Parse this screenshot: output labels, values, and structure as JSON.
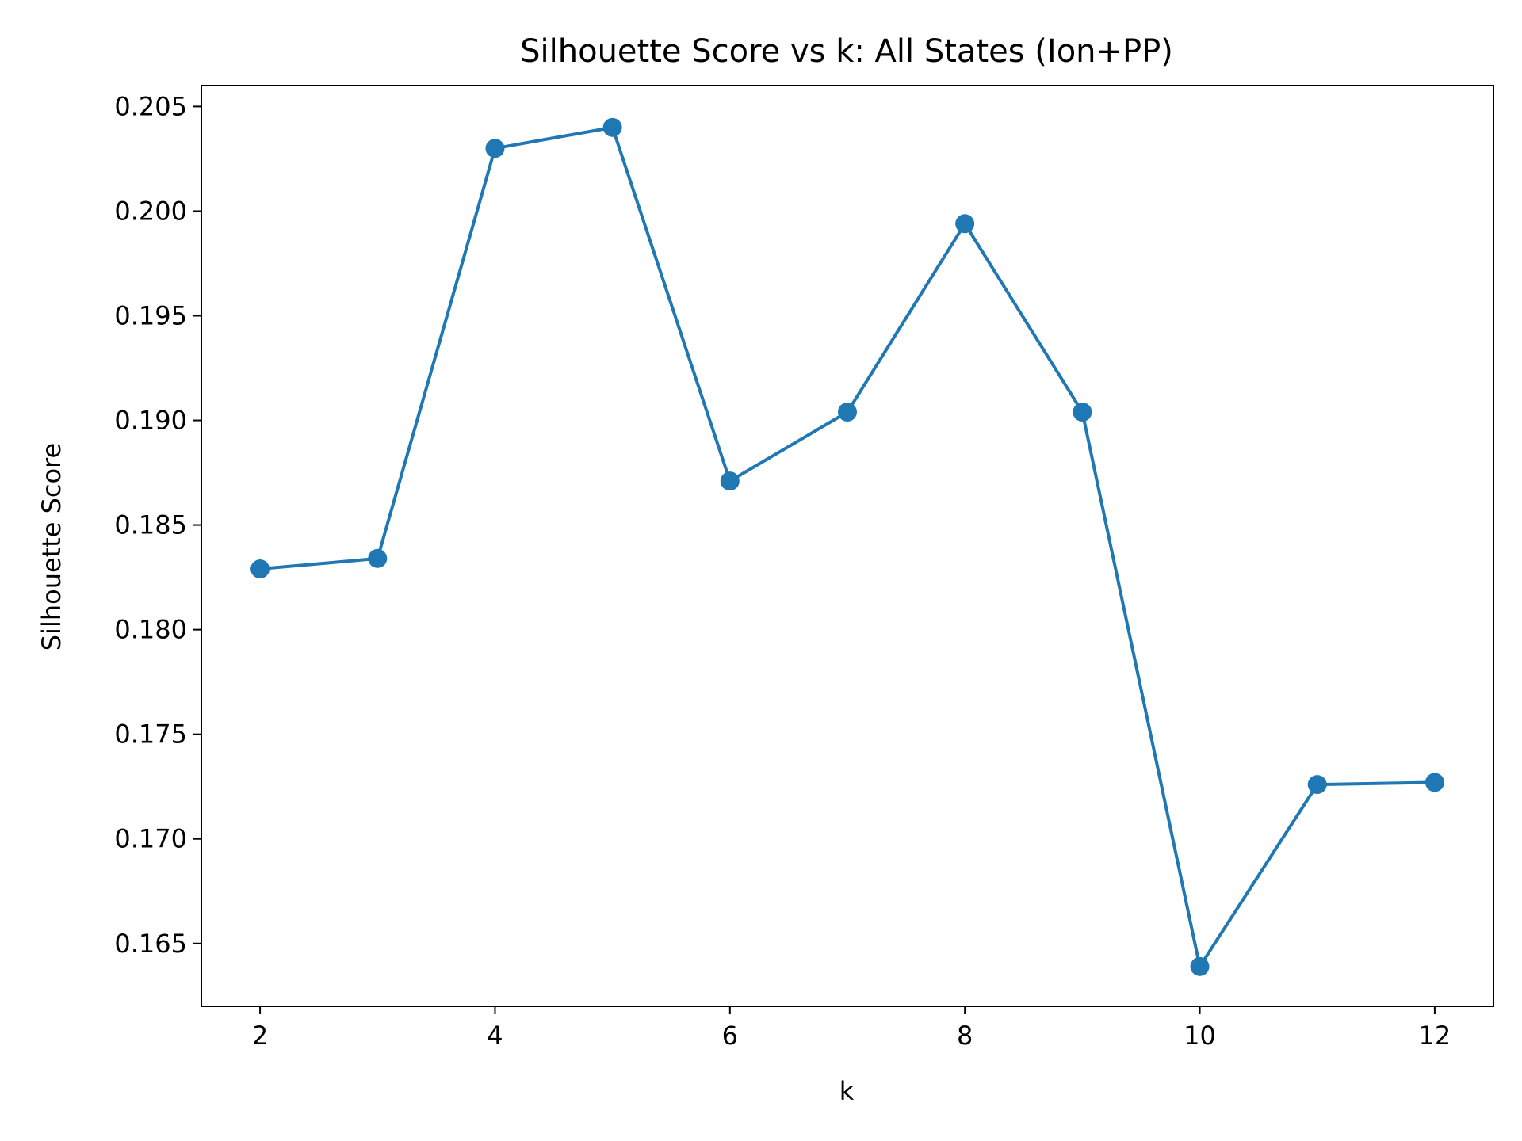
{
  "chart_data": {
    "type": "line",
    "title": "Silhouette Score vs k: All States (Ion+PP)",
    "xlabel": "k",
    "ylabel": "Silhouette Score",
    "xlim": [
      1.5,
      12.5
    ],
    "ylim": [
      0.162,
      0.206
    ],
    "xticks": [
      2,
      4,
      6,
      8,
      10,
      12
    ],
    "xtick_labels": [
      "2",
      "4",
      "6",
      "8",
      "10",
      "12"
    ],
    "yticks": [
      0.165,
      0.17,
      0.175,
      0.18,
      0.185,
      0.19,
      0.195,
      0.2,
      0.205
    ],
    "ytick_labels": [
      "0.165",
      "0.170",
      "0.175",
      "0.180",
      "0.185",
      "0.190",
      "0.195",
      "0.200",
      "0.205"
    ],
    "grid": false,
    "legend": "none",
    "series": [
      {
        "color": "#1f77b4",
        "marker": "circle",
        "x": [
          2,
          3,
          4,
          5,
          6,
          7,
          8,
          9,
          10,
          11,
          12
        ],
        "y": [
          0.1829,
          0.1834,
          0.203,
          0.204,
          0.1871,
          0.1904,
          0.1994,
          0.1904,
          0.1639,
          0.1726,
          0.1727
        ]
      }
    ]
  }
}
